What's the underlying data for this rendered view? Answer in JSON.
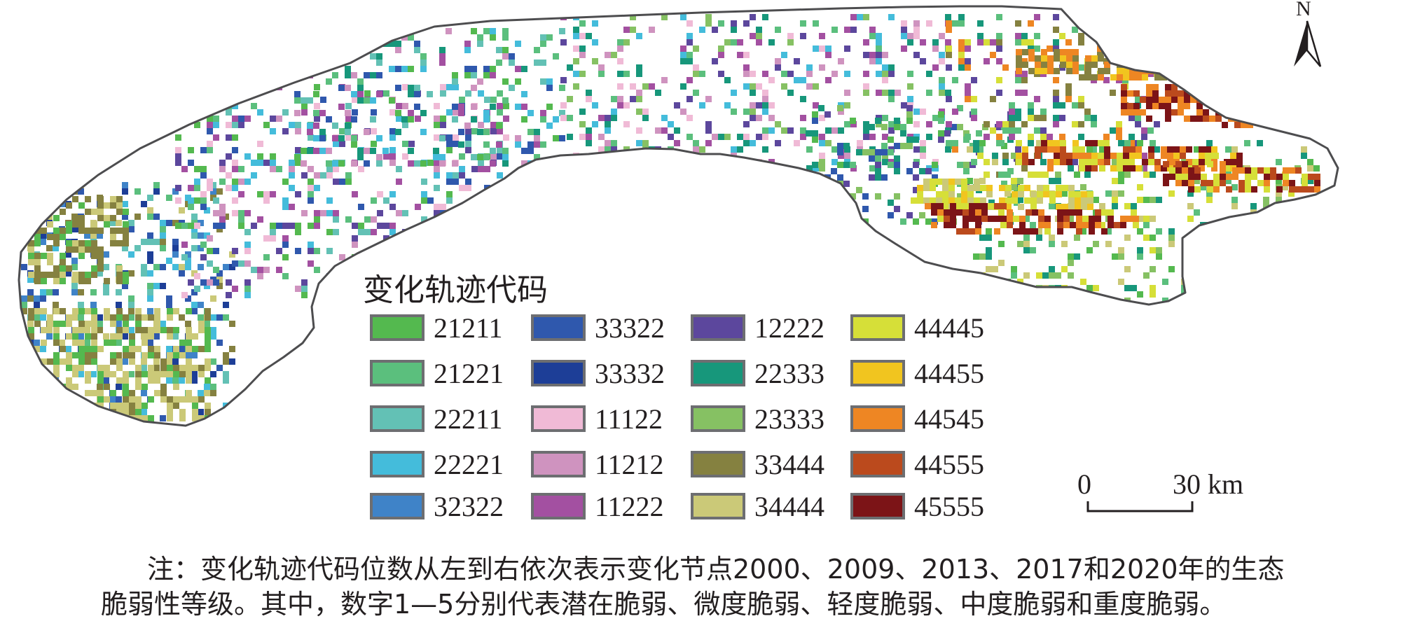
{
  "map": {
    "legend_title": "变化轨迹代码",
    "legend": [
      {
        "code": "21211",
        "color": "#54b94f"
      },
      {
        "code": "21221",
        "color": "#5bbf7d"
      },
      {
        "code": "22211",
        "color": "#63c1b5"
      },
      {
        "code": "22221",
        "color": "#44bcdb"
      },
      {
        "code": "32322",
        "color": "#3f83c8"
      },
      {
        "code": "33322",
        "color": "#2f58ad"
      },
      {
        "code": "33332",
        "color": "#1d3e97"
      },
      {
        "code": "11122",
        "color": "#f0bad6"
      },
      {
        "code": "11212",
        "color": "#cf93bf"
      },
      {
        "code": "11222",
        "color": "#a350a1"
      },
      {
        "code": "12222",
        "color": "#5c479d"
      },
      {
        "code": "22333",
        "color": "#17977b"
      },
      {
        "code": "23333",
        "color": "#86c163"
      },
      {
        "code": "33444",
        "color": "#858140"
      },
      {
        "code": "34444",
        "color": "#cbc978"
      },
      {
        "code": "44445",
        "color": "#d6df38"
      },
      {
        "code": "44455",
        "color": "#f1c51f"
      },
      {
        "code": "44545",
        "color": "#ee8623"
      },
      {
        "code": "44555",
        "color": "#bb4a1d"
      },
      {
        "code": "45555",
        "color": "#7c1417"
      }
    ],
    "north_label": "N",
    "scale_bar": {
      "start_label": "0",
      "end_label": "30 km"
    },
    "note_line1": "注：变化轨迹代码位数从左到右依次表示变化节点2000、2009、2013、2017和2020年的生态",
    "note_line2": "脆弱性等级。其中，数字1—5分别代表潜在脆弱、微度脆弱、轻度脆弱、中度脆弱和重度脆弱。"
  }
}
